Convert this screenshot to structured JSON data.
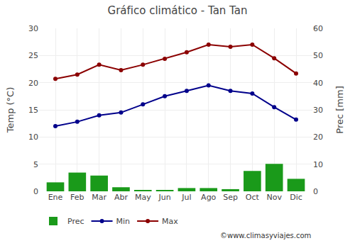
{
  "chart_data": {
    "type": "combo",
    "title": "Gráfico climático - Tan Tan",
    "categories": [
      "Ene",
      "Feb",
      "Mar",
      "Abr",
      "May",
      "Jun",
      "Jul",
      "Ago",
      "Sep",
      "Oct",
      "Nov",
      "Dic"
    ],
    "ylabel": "Temp (°C)",
    "y2label": "Prec [mm]",
    "ylim": [
      0,
      30
    ],
    "yticks": [
      0,
      5,
      10,
      15,
      20,
      25,
      30
    ],
    "y2lim": [
      0,
      60
    ],
    "y2ticks": [
      0,
      10,
      20,
      30,
      40,
      50,
      60
    ],
    "grid": true,
    "legend": "bottom",
    "annotations": [
      "©www.climasyviajes.com"
    ],
    "series": [
      {
        "name": "Prec",
        "type": "bar",
        "axis": "y2",
        "color": "#1a9a1a",
        "values": [
          3.3,
          6.9,
          5.8,
          1.5,
          0.5,
          0.4,
          1.2,
          1.2,
          0.8,
          7.5,
          10.1,
          4.6
        ]
      },
      {
        "name": "Min",
        "type": "line",
        "marker": "circle",
        "color": "#00008b",
        "values": [
          12.0,
          12.8,
          14.0,
          14.5,
          16.0,
          17.5,
          18.5,
          19.5,
          18.5,
          18.0,
          15.5,
          13.2
        ]
      },
      {
        "name": "Max",
        "type": "line",
        "marker": "circle",
        "color": "#8b0000",
        "values": [
          20.7,
          21.5,
          23.3,
          22.3,
          23.3,
          24.4,
          25.6,
          27.0,
          26.6,
          27.0,
          24.5,
          21.7
        ]
      }
    ]
  }
}
